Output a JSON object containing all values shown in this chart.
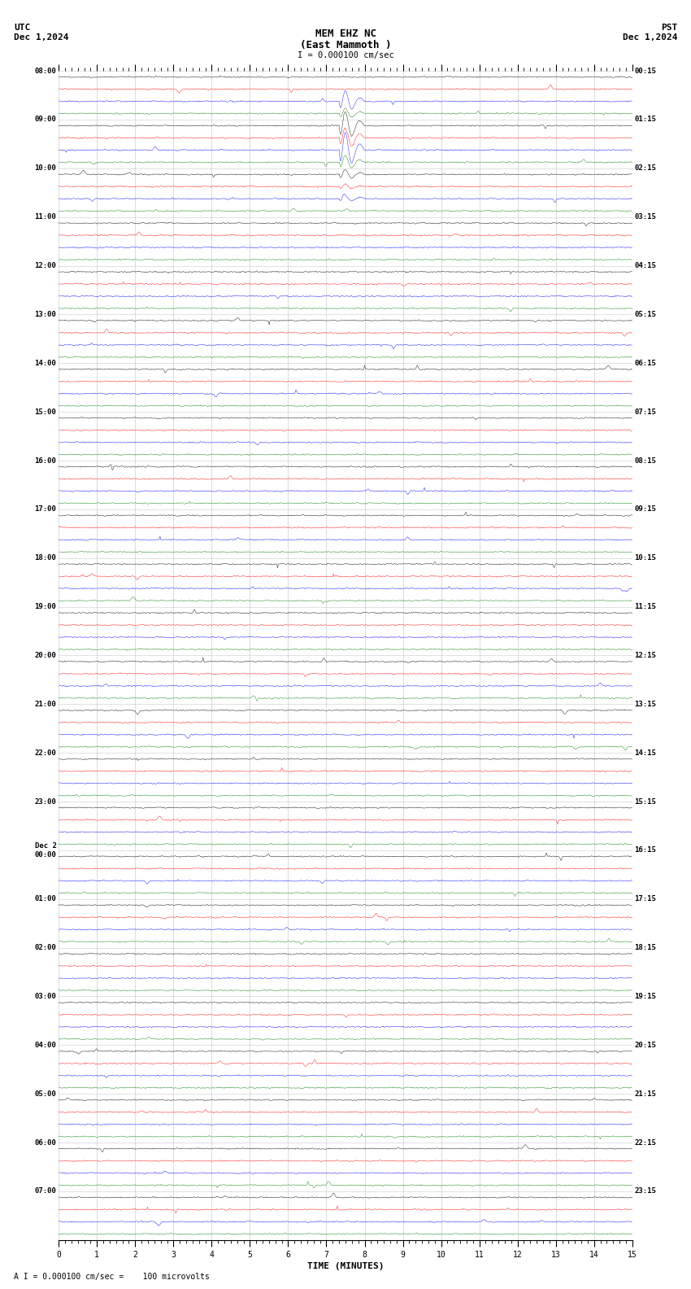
{
  "title_line1": "MEM EHZ NC",
  "title_line2": "(East Mammoth )",
  "scale_label": "I = 0.000100 cm/sec",
  "utc_label": "UTC",
  "utc_date": "Dec 1,2024",
  "pst_label": "PST",
  "pst_date": "Dec 1,2024",
  "bottom_label": "A I = 0.000100 cm/sec =    100 microvolts",
  "xlabel": "TIME (MINUTES)",
  "bg_color": "#ffffff",
  "trace_colors": [
    "black",
    "red",
    "blue",
    "green"
  ],
  "utc_hour_labels": [
    "08:00",
    "09:00",
    "10:00",
    "11:00",
    "12:00",
    "13:00",
    "14:00",
    "15:00",
    "16:00",
    "17:00",
    "18:00",
    "19:00",
    "20:00",
    "21:00",
    "22:00",
    "23:00",
    "Dec 2\n00:00",
    "01:00",
    "02:00",
    "03:00",
    "04:00",
    "05:00",
    "06:00",
    "07:00"
  ],
  "pst_hour_labels": [
    "00:15",
    "01:15",
    "02:15",
    "03:15",
    "04:15",
    "05:15",
    "06:15",
    "07:15",
    "08:15",
    "09:15",
    "10:15",
    "11:15",
    "12:15",
    "13:15",
    "14:15",
    "15:15",
    "16:15",
    "17:15",
    "18:15",
    "19:15",
    "20:15",
    "21:15",
    "22:15",
    "23:15"
  ],
  "n_hours": 24,
  "traces_per_hour": 4,
  "xmin": 0,
  "xmax": 15,
  "noise_scale": 0.012,
  "spike_noise_scale": 0.025,
  "trace_amplitude": 0.35,
  "eq_hour": 0,
  "eq_minute": 7.5,
  "grid_color": "#aaaaaa",
  "grid_linewidth": 0.5,
  "vgrid_color": "#888888",
  "vgrid_linewidth": 0.4
}
